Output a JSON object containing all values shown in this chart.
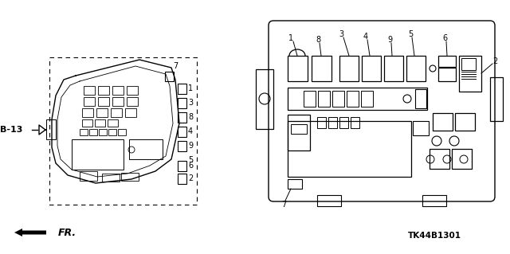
{
  "bg_color": "#ffffff",
  "line_color": "#000000",
  "title_code": "TK44B1301",
  "fr_label": "FR.",
  "b13_label": "B-13"
}
